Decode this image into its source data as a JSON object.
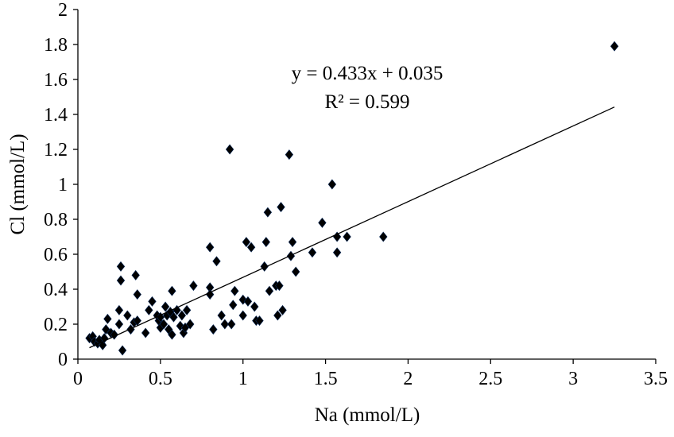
{
  "chart_data": {
    "type": "scatter",
    "title": "",
    "xlabel": "Na (mmol/L)",
    "ylabel": "Cl (mmol/L)",
    "xlim": [
      0,
      3.5
    ],
    "ylim": [
      0,
      2
    ],
    "xticks": [
      "0",
      "0.5",
      "1",
      "1.5",
      "2",
      "2.5",
      "3",
      "3.5"
    ],
    "yticks": [
      "0",
      "0.2",
      "0.4",
      "0.6",
      "0.8",
      "1",
      "1.2",
      "1.4",
      "1.6",
      "1.8",
      "2"
    ],
    "grid": false,
    "trendline": {
      "slope": 0.433,
      "intercept": 0.035,
      "x_range": [
        0.07,
        3.25
      ]
    },
    "annotations": [
      "y = 0.433x + 0.035",
      "R² = 0.599"
    ],
    "marker_color": "#000000",
    "points": [
      [
        0.07,
        0.12
      ],
      [
        0.09,
        0.13
      ],
      [
        0.1,
        0.1
      ],
      [
        0.12,
        0.09
      ],
      [
        0.13,
        0.11
      ],
      [
        0.15,
        0.08
      ],
      [
        0.16,
        0.12
      ],
      [
        0.17,
        0.17
      ],
      [
        0.18,
        0.23
      ],
      [
        0.2,
        0.15
      ],
      [
        0.22,
        0.14
      ],
      [
        0.25,
        0.2
      ],
      [
        0.25,
        0.28
      ],
      [
        0.26,
        0.53
      ],
      [
        0.26,
        0.45
      ],
      [
        0.27,
        0.05
      ],
      [
        0.3,
        0.25
      ],
      [
        0.32,
        0.17
      ],
      [
        0.34,
        0.21
      ],
      [
        0.35,
        0.48
      ],
      [
        0.36,
        0.37
      ],
      [
        0.36,
        0.22
      ],
      [
        0.41,
        0.15
      ],
      [
        0.43,
        0.28
      ],
      [
        0.45,
        0.33
      ],
      [
        0.48,
        0.25
      ],
      [
        0.49,
        0.22
      ],
      [
        0.5,
        0.18
      ],
      [
        0.5,
        0.24
      ],
      [
        0.52,
        0.2
      ],
      [
        0.53,
        0.3
      ],
      [
        0.54,
        0.25
      ],
      [
        0.55,
        0.17
      ],
      [
        0.56,
        0.27
      ],
      [
        0.57,
        0.14
      ],
      [
        0.57,
        0.39
      ],
      [
        0.58,
        0.24
      ],
      [
        0.6,
        0.28
      ],
      [
        0.62,
        0.19
      ],
      [
        0.63,
        0.25
      ],
      [
        0.64,
        0.15
      ],
      [
        0.65,
        0.18
      ],
      [
        0.66,
        0.28
      ],
      [
        0.68,
        0.2
      ],
      [
        0.7,
        0.42
      ],
      [
        0.8,
        0.64
      ],
      [
        0.8,
        0.41
      ],
      [
        0.8,
        0.37
      ],
      [
        0.82,
        0.17
      ],
      [
        0.84,
        0.56
      ],
      [
        0.87,
        0.25
      ],
      [
        0.89,
        0.2
      ],
      [
        0.92,
        1.2
      ],
      [
        0.93,
        0.2
      ],
      [
        0.94,
        0.31
      ],
      [
        0.95,
        0.39
      ],
      [
        1.0,
        0.34
      ],
      [
        1.0,
        0.25
      ],
      [
        1.02,
        0.67
      ],
      [
        1.03,
        0.33
      ],
      [
        1.05,
        0.64
      ],
      [
        1.07,
        0.3
      ],
      [
        1.08,
        0.22
      ],
      [
        1.1,
        0.22
      ],
      [
        1.13,
        0.53
      ],
      [
        1.14,
        0.67
      ],
      [
        1.15,
        0.84
      ],
      [
        1.16,
        0.39
      ],
      [
        1.2,
        0.42
      ],
      [
        1.21,
        0.25
      ],
      [
        1.22,
        0.42
      ],
      [
        1.23,
        0.87
      ],
      [
        1.24,
        0.28
      ],
      [
        1.28,
        1.17
      ],
      [
        1.29,
        0.59
      ],
      [
        1.3,
        0.67
      ],
      [
        1.32,
        0.5
      ],
      [
        1.42,
        0.61
      ],
      [
        1.48,
        0.78
      ],
      [
        1.54,
        1.0
      ],
      [
        1.57,
        0.7
      ],
      [
        1.57,
        0.61
      ],
      [
        1.63,
        0.7
      ],
      [
        1.85,
        0.7
      ],
      [
        3.25,
        1.79
      ]
    ]
  }
}
